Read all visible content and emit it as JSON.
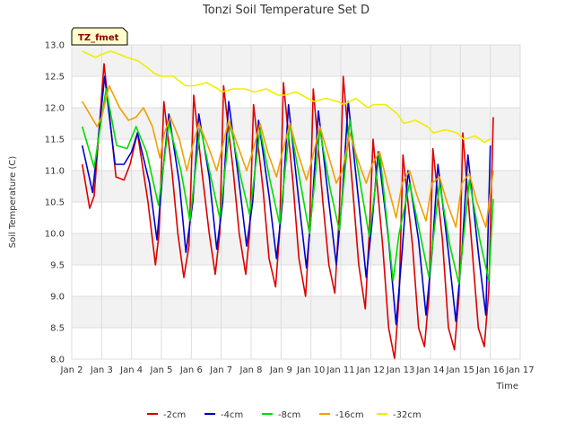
{
  "chart_data": {
    "type": "line",
    "title": "Tonzi Soil Temperature Set D",
    "xlabel": "Time",
    "ylabel": "Soil Temperature (C)",
    "xlim": [
      2,
      17
    ],
    "ylim": [
      8.0,
      13.0
    ],
    "x_ticks": [
      2,
      3,
      4,
      5,
      6,
      7,
      8,
      9,
      10,
      11,
      12,
      13,
      14,
      15,
      16,
      17
    ],
    "x_tick_labels": [
      "Jan 2",
      "Jan 3",
      "Jan 4",
      "Jan 5",
      "Jan 6",
      "Jan 7",
      "Jan 8",
      "Jan 9",
      "Jan 10",
      "Jan 11",
      "Jan 12",
      "Jan 13",
      "Jan 14",
      "Jan 15",
      "Jan 16",
      "Jan 17"
    ],
    "y_ticks": [
      8.0,
      8.5,
      9.0,
      9.5,
      10.0,
      10.5,
      11.0,
      11.5,
      12.0,
      12.5,
      13.0
    ],
    "y_tick_labels": [
      "8.0",
      "8.5",
      "9.0",
      "9.5",
      "10.0",
      "10.5",
      "11.0",
      "11.5",
      "12.0",
      "12.5",
      "13.0"
    ],
    "grid": true,
    "band_colors": [
      "#f2f2f2",
      "#ffffff"
    ],
    "legend_position": "bottom",
    "badge": "TZ_fmet",
    "series": [
      {
        "name": "-2cm",
        "color": "#dd0000",
        "x": [
          2.35,
          2.6,
          2.75,
          3.08,
          3.48,
          3.75,
          3.95,
          4.2,
          4.55,
          4.8,
          4.92,
          5.08,
          5.35,
          5.55,
          5.75,
          5.92,
          6.08,
          6.35,
          6.6,
          6.8,
          6.95,
          7.08,
          7.4,
          7.6,
          7.82,
          7.95,
          8.08,
          8.4,
          8.6,
          8.82,
          8.95,
          9.08,
          9.4,
          9.6,
          9.82,
          9.95,
          10.08,
          10.4,
          10.6,
          10.8,
          10.95,
          11.08,
          11.4,
          11.6,
          11.82,
          11.95,
          12.08,
          12.4,
          12.6,
          12.8,
          12.95,
          13.08,
          13.4,
          13.6,
          13.8,
          13.95,
          14.08,
          14.4,
          14.6,
          14.8,
          14.95,
          15.08,
          15.4,
          15.6,
          15.8,
          15.95,
          16.1
        ],
        "values": [
          11.1,
          10.4,
          10.6,
          12.7,
          10.9,
          10.85,
          11.1,
          11.6,
          10.5,
          9.5,
          10.0,
          12.1,
          11.0,
          10.0,
          9.3,
          9.8,
          12.2,
          11.0,
          10.0,
          9.35,
          10.0,
          12.35,
          11.0,
          10.0,
          9.35,
          10.0,
          12.05,
          10.7,
          9.6,
          9.15,
          10.0,
          12.4,
          10.8,
          9.6,
          9.0,
          10.0,
          12.3,
          10.5,
          9.5,
          9.05,
          10.3,
          12.5,
          10.7,
          9.5,
          8.8,
          10.0,
          11.5,
          9.8,
          8.5,
          8.0,
          9.0,
          11.25,
          9.8,
          8.5,
          8.2,
          9.0,
          11.35,
          9.9,
          8.5,
          8.15,
          9.0,
          11.6,
          9.7,
          8.5,
          8.2,
          9.1,
          11.85
        ]
      },
      {
        "name": "-4cm",
        "color": "#0000cc",
        "x": [
          2.35,
          2.7,
          3.1,
          3.45,
          3.75,
          4.0,
          4.2,
          4.6,
          4.85,
          5.05,
          5.25,
          5.6,
          5.82,
          6.05,
          6.25,
          6.6,
          6.85,
          7.05,
          7.25,
          7.6,
          7.85,
          8.05,
          8.25,
          8.6,
          8.85,
          9.05,
          9.25,
          9.6,
          9.85,
          10.05,
          10.25,
          10.6,
          10.85,
          11.05,
          11.25,
          11.6,
          11.85,
          12.05,
          12.25,
          12.6,
          12.85,
          13.05,
          13.25,
          13.6,
          13.85,
          14.05,
          14.25,
          14.6,
          14.85,
          15.05,
          15.25,
          15.6,
          15.85,
          16.0
        ],
        "values": [
          11.4,
          10.65,
          12.5,
          11.1,
          11.1,
          11.3,
          11.6,
          10.8,
          9.9,
          11.0,
          11.9,
          10.8,
          9.7,
          10.5,
          11.9,
          10.9,
          9.75,
          10.5,
          12.1,
          10.8,
          9.8,
          10.5,
          11.8,
          10.6,
          9.6,
          10.5,
          12.05,
          10.5,
          9.45,
          10.5,
          11.95,
          10.5,
          9.5,
          10.6,
          12.1,
          10.5,
          9.3,
          10.2,
          11.3,
          9.9,
          8.55,
          9.7,
          11.0,
          9.9,
          8.7,
          9.7,
          11.1,
          9.7,
          8.6,
          9.7,
          11.25,
          9.7,
          8.7,
          11.4
        ]
      },
      {
        "name": "-8cm",
        "color": "#00dd00",
        "x": [
          2.35,
          2.75,
          3.15,
          3.5,
          3.85,
          4.15,
          4.5,
          4.9,
          5.25,
          5.65,
          5.95,
          6.3,
          6.65,
          6.95,
          7.3,
          7.65,
          7.95,
          8.3,
          8.65,
          8.95,
          9.3,
          9.65,
          9.95,
          10.3,
          10.65,
          10.95,
          11.3,
          11.65,
          11.95,
          12.3,
          12.75,
          12.95,
          13.3,
          13.65,
          13.95,
          14.3,
          14.65,
          14.95,
          15.3,
          15.65,
          15.95,
          16.1
        ],
        "values": [
          11.7,
          11.05,
          12.3,
          11.4,
          11.35,
          11.7,
          11.3,
          10.45,
          11.75,
          11.0,
          10.2,
          11.7,
          10.9,
          10.25,
          11.75,
          10.9,
          10.3,
          11.65,
          10.8,
          10.15,
          11.75,
          10.8,
          10.0,
          11.65,
          10.7,
          10.05,
          11.8,
          10.8,
          9.95,
          11.3,
          9.25,
          10.0,
          10.8,
          10.0,
          9.3,
          10.8,
          9.8,
          9.2,
          10.85,
          9.9,
          9.25,
          10.55
        ]
      },
      {
        "name": "-16cm",
        "color": "#f0a000",
        "x": [
          2.35,
          2.6,
          2.85,
          3.0,
          3.25,
          3.6,
          3.9,
          4.15,
          4.4,
          4.7,
          4.95,
          5.1,
          5.3,
          5.6,
          5.85,
          6.05,
          6.25,
          6.55,
          6.85,
          7.05,
          7.25,
          7.55,
          7.85,
          8.05,
          8.3,
          8.55,
          8.85,
          9.05,
          9.3,
          9.55,
          9.85,
          10.05,
          10.3,
          10.55,
          10.85,
          11.05,
          11.3,
          11.55,
          11.85,
          12.05,
          12.3,
          12.55,
          12.85,
          13.05,
          13.3,
          13.55,
          13.85,
          14.05,
          14.3,
          14.55,
          14.85,
          15.05,
          15.3,
          15.55,
          15.85,
          16.1
        ],
        "values": [
          12.1,
          11.9,
          11.7,
          11.85,
          12.35,
          12.0,
          11.8,
          11.85,
          12.0,
          11.7,
          11.2,
          11.6,
          11.85,
          11.5,
          11.0,
          11.4,
          11.75,
          11.4,
          11.0,
          11.4,
          11.8,
          11.4,
          11.0,
          11.3,
          11.75,
          11.3,
          10.9,
          11.3,
          11.75,
          11.3,
          10.85,
          11.2,
          11.7,
          11.3,
          10.8,
          11.0,
          11.6,
          11.2,
          10.8,
          11.1,
          11.3,
          10.8,
          10.25,
          10.8,
          11.0,
          10.6,
          10.2,
          10.8,
          10.9,
          10.5,
          10.1,
          10.8,
          10.95,
          10.5,
          10.1,
          11.0
        ]
      },
      {
        "name": "-32cm",
        "color": "#eeee00",
        "x": [
          2.35,
          2.8,
          3.0,
          3.3,
          3.6,
          3.85,
          4.2,
          4.5,
          4.75,
          5.0,
          5.4,
          5.8,
          6.1,
          6.5,
          6.9,
          7.0,
          7.4,
          7.8,
          8.1,
          8.5,
          8.9,
          9.1,
          9.5,
          9.9,
          10.1,
          10.5,
          10.9,
          11.1,
          11.5,
          11.9,
          12.1,
          12.5,
          12.9,
          13.1,
          13.5,
          13.9,
          14.1,
          14.5,
          14.9,
          15.1,
          15.5,
          15.8,
          16.0
        ],
        "values": [
          12.9,
          12.8,
          12.85,
          12.9,
          12.85,
          12.8,
          12.75,
          12.65,
          12.55,
          12.5,
          12.5,
          12.35,
          12.35,
          12.4,
          12.3,
          12.25,
          12.3,
          12.3,
          12.25,
          12.3,
          12.2,
          12.2,
          12.25,
          12.15,
          12.1,
          12.15,
          12.1,
          12.05,
          12.15,
          12.0,
          12.05,
          12.05,
          11.9,
          11.75,
          11.8,
          11.7,
          11.6,
          11.65,
          11.6,
          11.5,
          11.55,
          11.45,
          11.5
        ]
      }
    ]
  }
}
